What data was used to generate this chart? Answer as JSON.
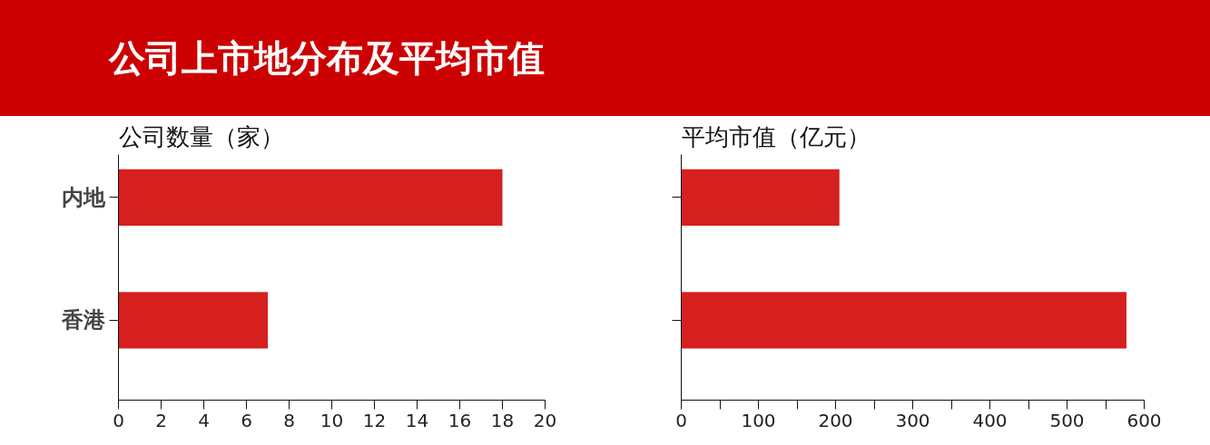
{
  "chart_data": [
    {
      "type": "bar",
      "orientation": "horizontal",
      "title": "公司上市地分布及平均市值",
      "subtitle": "公司数量（家）",
      "categories": [
        "内地",
        "香港"
      ],
      "values": [
        18,
        7
      ],
      "color": "#d61f1f",
      "xlim": [
        0,
        20
      ],
      "xticks": [
        0,
        2,
        4,
        6,
        8,
        10,
        12,
        14,
        16,
        18,
        20
      ],
      "grid": false,
      "legend": false
    },
    {
      "type": "bar",
      "orientation": "horizontal",
      "subtitle": "平均市值（亿元）",
      "categories": [
        null,
        null
      ],
      "values": [
        205,
        577
      ],
      "color": "#d61f1f",
      "xlim": [
        0,
        600
      ],
      "xticks": [
        0,
        {
          "value": 50,
          "label": null
        },
        100,
        {
          "value": 150,
          "label": null
        },
        200,
        {
          "value": 250,
          "label": null
        },
        300,
        {
          "value": 350,
          "label": null
        },
        400,
        {
          "value": 450,
          "label": null
        },
        500,
        {
          "value": 550,
          "label": null
        },
        600
      ],
      "tick_labels": "x",
      "grid": false,
      "legend": false
    }
  ]
}
